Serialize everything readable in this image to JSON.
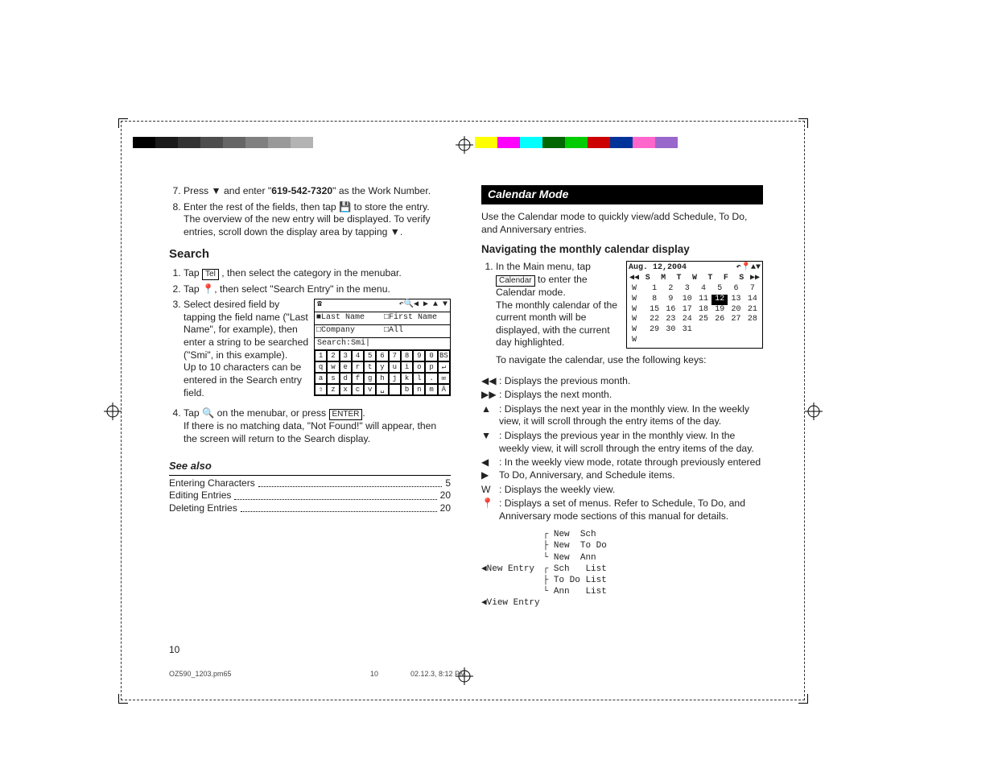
{
  "colorbar_left": [
    "#000000",
    "#1a1a1a",
    "#333333",
    "#4d4d4d",
    "#666666",
    "#808080",
    "#999999",
    "#b3b3b3"
  ],
  "colorbar_right": [
    "#ffff00",
    "#ff00ff",
    "#00ffff",
    "#006600",
    "#00cc00",
    "#cc0000",
    "#003399",
    "#ff66cc",
    "#9966cc",
    "#ffffff"
  ],
  "left": {
    "step7_pre": "Press ",
    "step7_arrow": "▼",
    "step7_mid": " and enter \"",
    "step7_num": "619-542-7320",
    "step7_post": "\" as the Work Number.",
    "step8_pre": "Enter the rest of the fields, then tap ",
    "step8_icon": "💾",
    "step8_post": " to store the entry.",
    "step8_sub": "The overview of the new entry will be displayed. To verify entries, scroll down the display area by tapping ▼.",
    "search_head": "Search",
    "s1_pre": "Tap ",
    "s1_key": "Tel",
    "s1_post": " , then select the category in the menubar.",
    "s2": "Tap 📍, then select \"Search Entry\" in the menu.",
    "s3a": "Select desired field by tapping the field name (\"Last Name\", for example), then enter a string to be searched (\"Smi\", in this example).",
    "s3b": "Up to 10 characters can be entered in the Search entry field.",
    "s4_pre": "Tap ",
    "s4_icon": "🔍",
    "s4_mid": " on the menubar, or press ",
    "s4_key": "ENTER",
    "s4_post": ".",
    "s4_sub": "If there is no matching data, \"Not Found!\" will appear, then the screen will return to the Search display.",
    "see_also": "See also",
    "sa1_l": "Entering Characters",
    "sa1_r": "5",
    "sa2_l": "Editing Entries",
    "sa2_r": "20",
    "sa3_l": "Deleting Entries",
    "sa3_r": "20"
  },
  "search_screen": {
    "r1_a": "■Last Name",
    "r1_b": "□First Name",
    "r2_a": "□Company",
    "r2_b": "□All",
    "r3": "Search:Smi|",
    "kbd": [
      "1",
      "2",
      "3",
      "4",
      "5",
      "6",
      "7",
      "8",
      "9",
      "0",
      "BS",
      "q",
      "w",
      "e",
      "r",
      "t",
      "y",
      "u",
      "i",
      "o",
      "p",
      "↵",
      "a",
      "s",
      "d",
      "f",
      "g",
      "h",
      "j",
      "k",
      "l",
      ".",
      "✉",
      "⇧",
      "z",
      "x",
      "c",
      "v",
      "␣",
      "",
      "b",
      "n",
      "m",
      "Ä"
    ]
  },
  "right": {
    "mode": "Calendar Mode",
    "intro": "Use the Calendar mode to quickly view/add Schedule, To Do, and Anniversary entries.",
    "nav_head": "Navigating the monthly calendar display",
    "r1_pre": "In the Main menu, tap ",
    "r1_key": "Calendar",
    "r1_post": " to enter the Calendar mode.",
    "r1_sub1": "The monthly calendar of the current month will be displayed, with the current day highlighted.",
    "r1_sub2": "To navigate the calendar, use the following keys:",
    "nav": [
      {
        "sym": "◀◀",
        "txt": ": Displays the previous month."
      },
      {
        "sym": "▶▶",
        "txt": ": Displays the next month."
      },
      {
        "sym": "▲",
        "txt": ": Displays the next year in the monthly view. In the weekly view, it will scroll through the entry items of the day."
      },
      {
        "sym": "▼",
        "txt": ": Displays the previous year in the monthly view. In the weekly view, it will scroll through the entry items of the day."
      },
      {
        "sym": "◀ ▶",
        "txt": ": In the weekly view mode, rotate through previously entered To Do, Anniversary, and Schedule items."
      },
      {
        "sym": "W",
        "txt": ": Displays the weekly view."
      },
      {
        "sym": "📍",
        "txt": ": Displays a set of menus. Refer to Schedule, To Do, and Anniversary mode sections of this manual for details."
      }
    ]
  },
  "cal_screen": {
    "title": "Aug. 12,2004",
    "icons": "↶📍▲▼",
    "dow": [
      "S",
      "M",
      "T",
      "W",
      "T",
      "F",
      "S"
    ],
    "rows": [
      [
        "W",
        "",
        "1",
        "2",
        "3",
        "4",
        "5",
        "6",
        "7"
      ],
      [
        "W",
        "",
        "8",
        "9",
        "10",
        "11",
        "12",
        "13",
        "14"
      ],
      [
        "W",
        "",
        "15",
        "16",
        "17",
        "18",
        "19",
        "20",
        "21"
      ],
      [
        "W",
        "",
        "22",
        "23",
        "24",
        "25",
        "26",
        "27",
        "28"
      ],
      [
        "W",
        "",
        "29",
        "30",
        "31",
        "",
        "",
        "",
        ""
      ],
      [
        "W",
        "",
        "",
        "",
        "",
        "",
        "",
        "",
        ""
      ]
    ],
    "hl": "12"
  },
  "tree": {
    "left1": "◀New Entry",
    "left2": "◀View Entry",
    "right": "┌ New  Sch\n├ New  To Do\n└ New  Ann\n┌ Sch   List\n├ To Do List\n└ Ann   List"
  },
  "pagenum": "10",
  "footer": {
    "file": "OZ590_1203.pm65",
    "page": "10",
    "date": "02.12.3, 8:12 PM"
  }
}
